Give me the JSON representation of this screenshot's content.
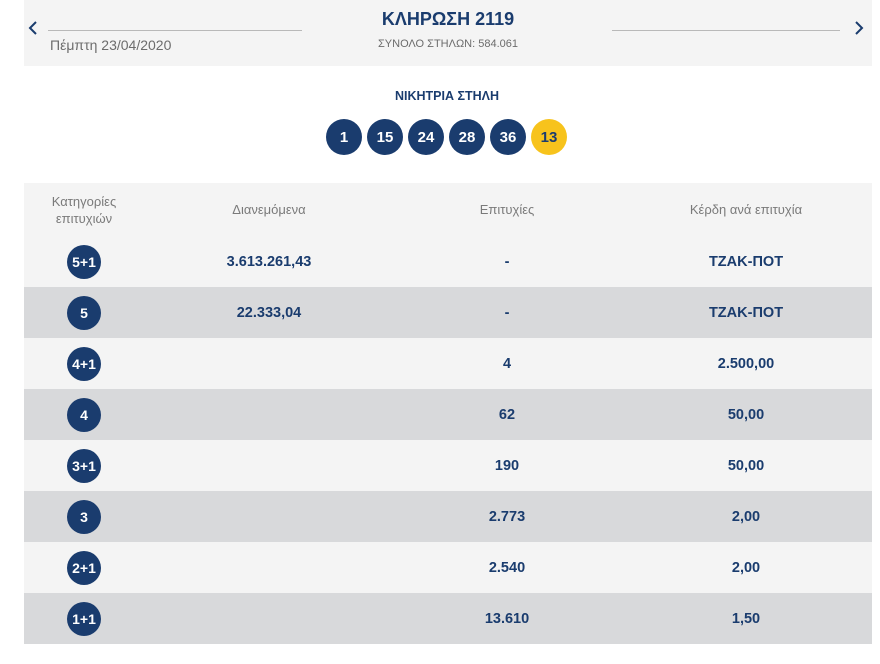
{
  "header": {
    "draw_title": "ΚΛΗΡΩΣΗ 2119",
    "total_columns": "ΣΥΝΟΛΟ ΣΤΗΛΩΝ: 584.061",
    "draw_date": "Πέμπτη 23/04/2020",
    "prev_icon": "chevron-left-icon",
    "next_icon": "chevron-right-icon"
  },
  "winning": {
    "title": "ΝΙΚΗΤΡΙΑ ΣΤΗΛΗ",
    "numbers": [
      "1",
      "15",
      "24",
      "28",
      "36"
    ],
    "bonus": "13"
  },
  "table": {
    "headers": {
      "category_line1": "Κατηγορίες",
      "category_line2": "επιτυχιών",
      "distributed": "Διανεμόμενα",
      "winners": "Επιτυχίες",
      "prize": "Κέρδη ανά επιτυχία"
    },
    "rows": [
      {
        "category": "5+1",
        "distributed": "3.613.261,43",
        "winners": "-",
        "prize": "ΤΖΑΚ-ΠΟΤ"
      },
      {
        "category": "5",
        "distributed": "22.333,04",
        "winners": "-",
        "prize": "ΤΖΑΚ-ΠΟΤ"
      },
      {
        "category": "4+1",
        "distributed": "",
        "winners": "4",
        "prize": "2.500,00"
      },
      {
        "category": "4",
        "distributed": "",
        "winners": "62",
        "prize": "50,00"
      },
      {
        "category": "3+1",
        "distributed": "",
        "winners": "190",
        "prize": "50,00"
      },
      {
        "category": "3",
        "distributed": "",
        "winners": "2.773",
        "prize": "2,00"
      },
      {
        "category": "2+1",
        "distributed": "",
        "winners": "2.540",
        "prize": "2,00"
      },
      {
        "category": "1+1",
        "distributed": "",
        "winners": "13.610",
        "prize": "1,50"
      }
    ]
  },
  "colors": {
    "navy": "#1a3c6e",
    "bonus_yellow": "#f7c31c",
    "row_light": "#f4f4f4",
    "row_dark": "#d8d9db"
  }
}
